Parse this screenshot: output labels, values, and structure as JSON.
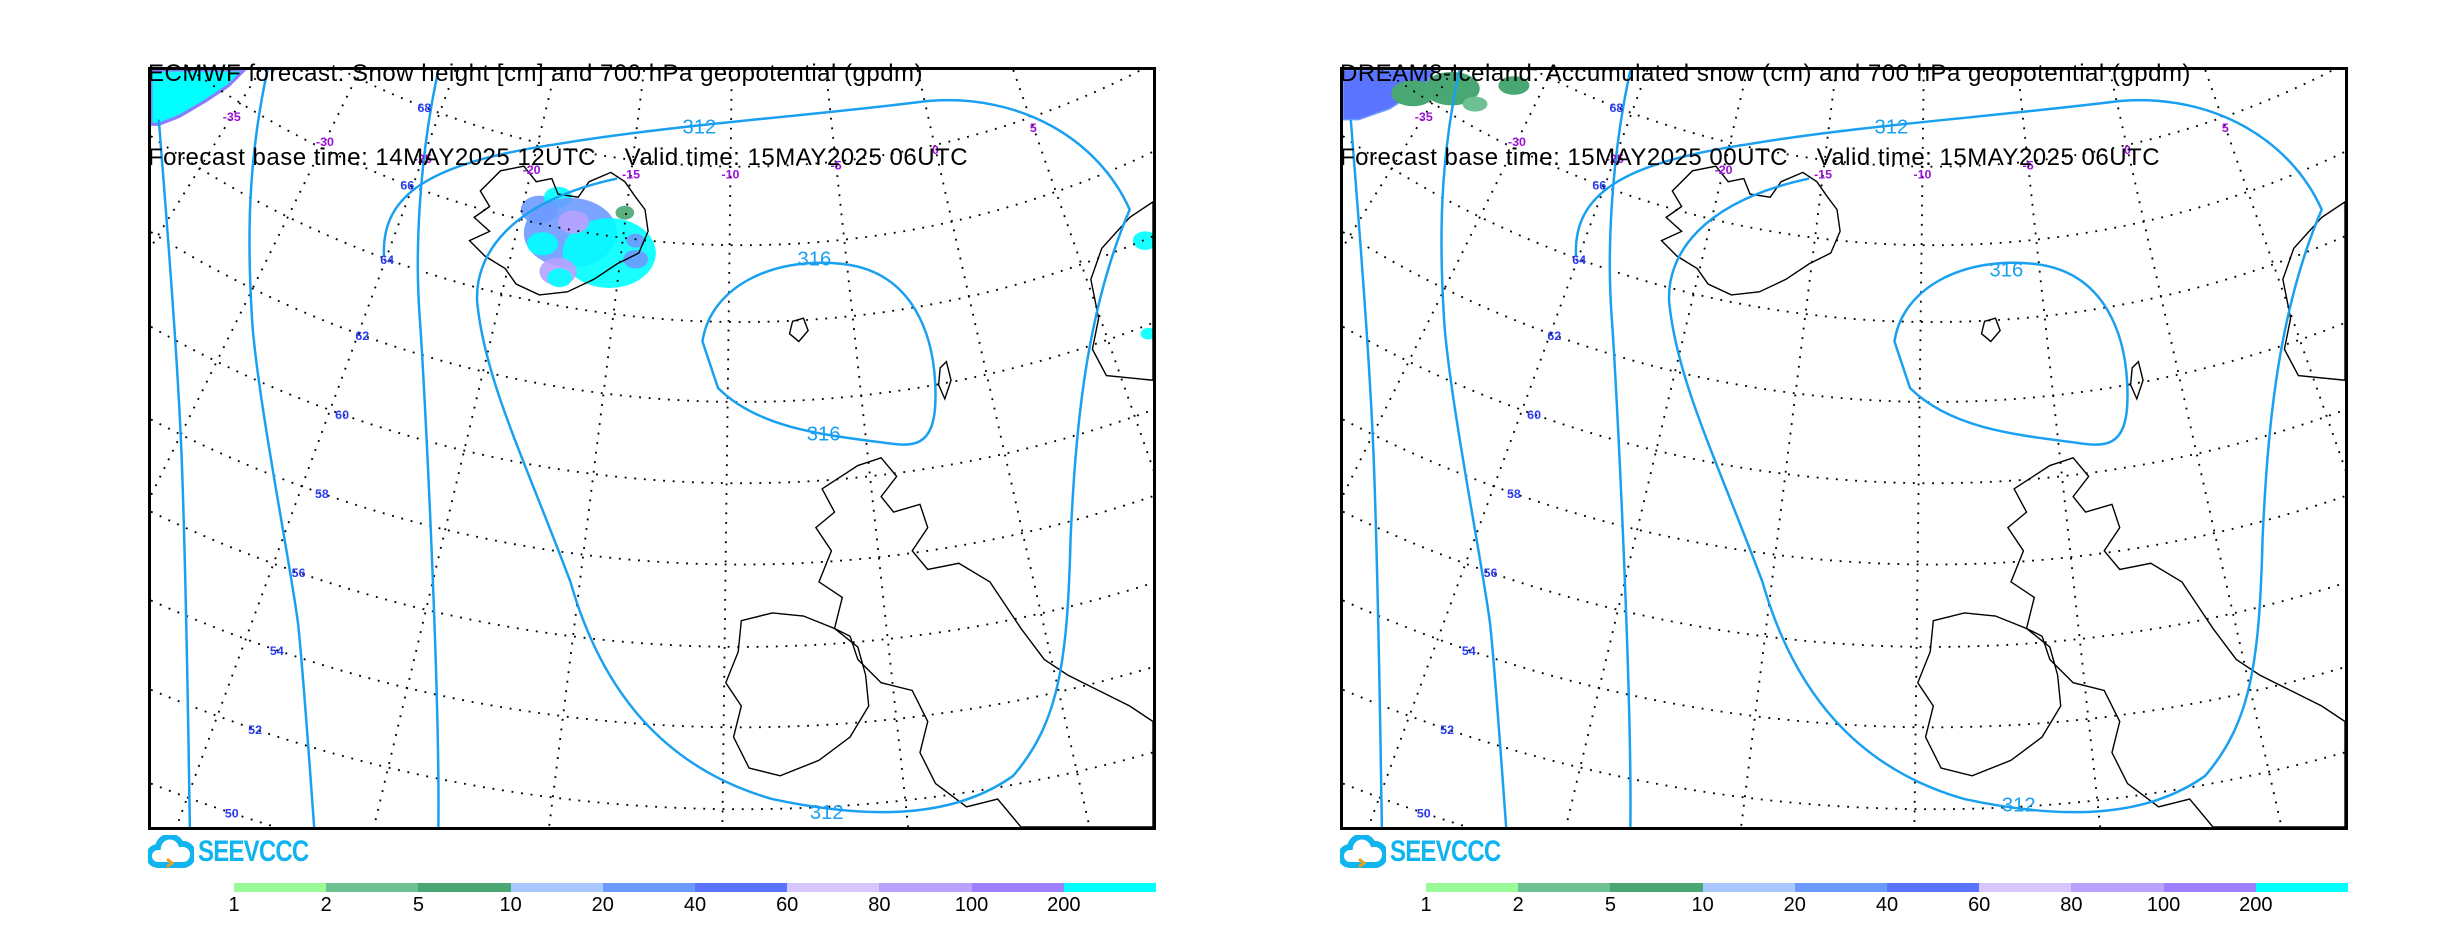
{
  "panels": [
    {
      "id": "ecmwf",
      "title_line1": "ECMWF forecast: Snow height [cm] and 700 hPa geopotential (gpdm)",
      "title_line2": "Forecast base time: 14MAY2025 12UTC    Valid time: 15MAY2025 06UTC",
      "snow_source": "ecmwf",
      "contour_labels": [
        "312",
        "312",
        "316",
        "316"
      ],
      "logo_text": "SEEVCCC"
    },
    {
      "id": "dream8",
      "title_line1": "DREAM8-Iceland: Accumulated snow (cm) and 700 hPa geopotential (gpdm)",
      "title_line2": "Forecast base time: 15MAY2025 00UTC    Valid time: 15MAY2025 06UTC",
      "snow_source": "dream8",
      "contour_labels": [
        "312",
        "312",
        "316"
      ],
      "logo_text": "SEEVCCC"
    }
  ],
  "latitude_labels": [
    "68",
    "66",
    "64",
    "62",
    "60",
    "58",
    "56",
    "54",
    "52",
    "50"
  ],
  "longitude_labels": [
    "-35",
    "-30",
    "-25",
    "-20",
    "-15",
    "-10",
    "-5",
    "0",
    "5"
  ],
  "colors": {
    "contour": "#1aa0f0",
    "lat_label": "#2a3cf0",
    "lon_label": "#9a10d8",
    "logo": "#10b4ee"
  },
  "chart_data": {
    "type": "heatmap",
    "title": "Snow height / accumulated snow (cm) with 700 hPa geopotential contours (gpdm)",
    "colorbar": {
      "unit": "cm",
      "boundaries": [
        "1",
        "2",
        "5",
        "10",
        "20",
        "40",
        "60",
        "80",
        "100",
        "200"
      ],
      "colors": [
        "#98fb98",
        "#6cc091",
        "#48a772",
        "#a8c8ff",
        "#6c9aff",
        "#5a74ff",
        "#d6c8ff",
        "#b8a2ff",
        "#9c80ff",
        "#00ffff"
      ]
    },
    "contour_levels_gpdm": [
      312,
      316
    ]
  }
}
